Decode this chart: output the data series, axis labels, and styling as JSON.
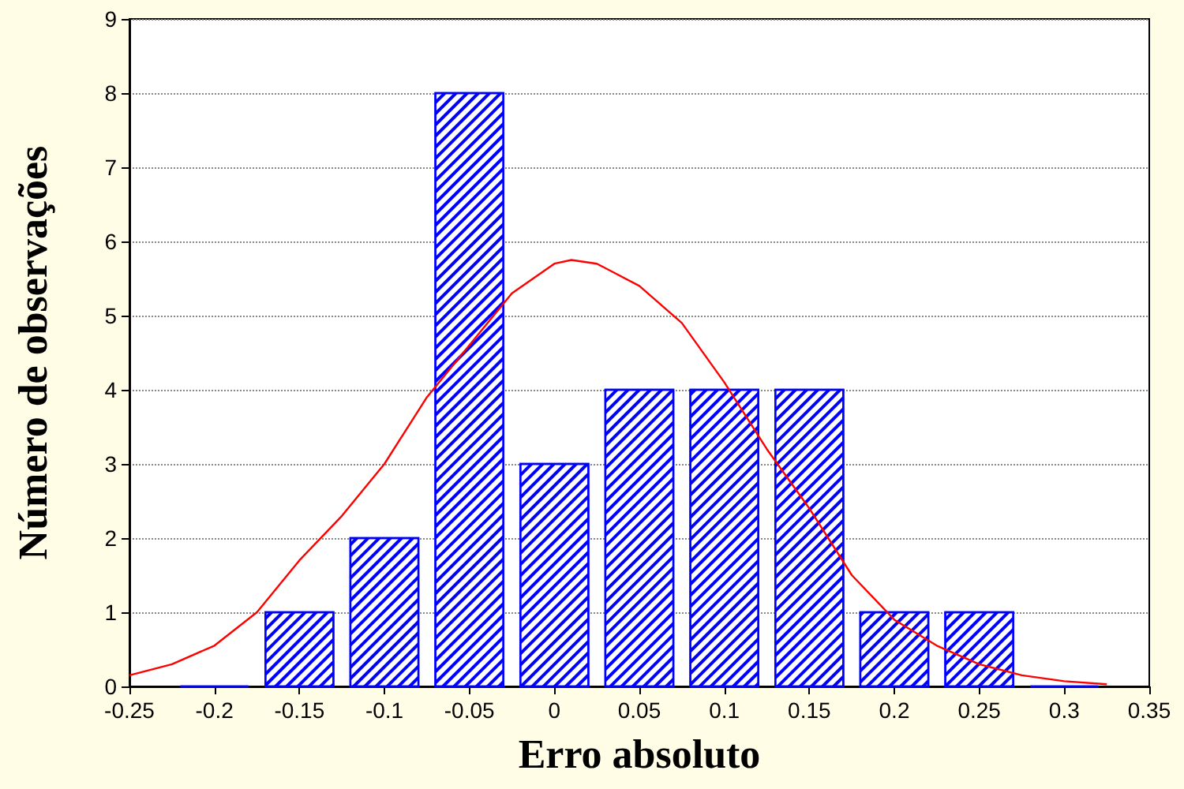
{
  "chart_data": {
    "type": "histogram",
    "xlabel": "Erro absoluto",
    "ylabel": "Número de observações",
    "bins": [
      -0.225,
      -0.175,
      -0.125,
      -0.075,
      -0.025,
      0.025,
      0.075,
      0.125,
      0.175,
      0.225,
      0.275,
      0.325
    ],
    "values": [
      0,
      1,
      2,
      8,
      3,
      4,
      4,
      4,
      1,
      1,
      0
    ],
    "color": "#0000ff",
    "series": [
      {
        "type": "line",
        "color": "#ff0000",
        "x": [
          -0.25,
          -0.225,
          -0.2,
          -0.175,
          -0.15,
          -0.125,
          -0.1,
          -0.075,
          -0.05,
          -0.025,
          0,
          0.01,
          0.025,
          0.05,
          0.075,
          0.1,
          0.125,
          0.15,
          0.175,
          0.2,
          0.225,
          0.25,
          0.275,
          0.3,
          0.325
        ],
        "values": [
          0.15,
          0.3,
          0.55,
          1.0,
          1.7,
          2.3,
          3.0,
          3.9,
          4.6,
          5.3,
          5.7,
          5.75,
          5.7,
          5.4,
          4.9,
          4.1,
          3.2,
          2.4,
          1.5,
          0.9,
          0.55,
          0.3,
          0.15,
          0.07,
          0.03
        ]
      }
    ],
    "xlim": [
      -0.25,
      0.35
    ],
    "xticks": [
      -0.25,
      -0.2,
      -0.15,
      -0.1,
      -0.05,
      0,
      0.05,
      0.1,
      0.15,
      0.2,
      0.25,
      0.3,
      0.35
    ],
    "ylim": [
      0,
      9
    ],
    "yticks": [
      0,
      1,
      2,
      3,
      4,
      5,
      6,
      7,
      8,
      9
    ],
    "grid": "y"
  }
}
